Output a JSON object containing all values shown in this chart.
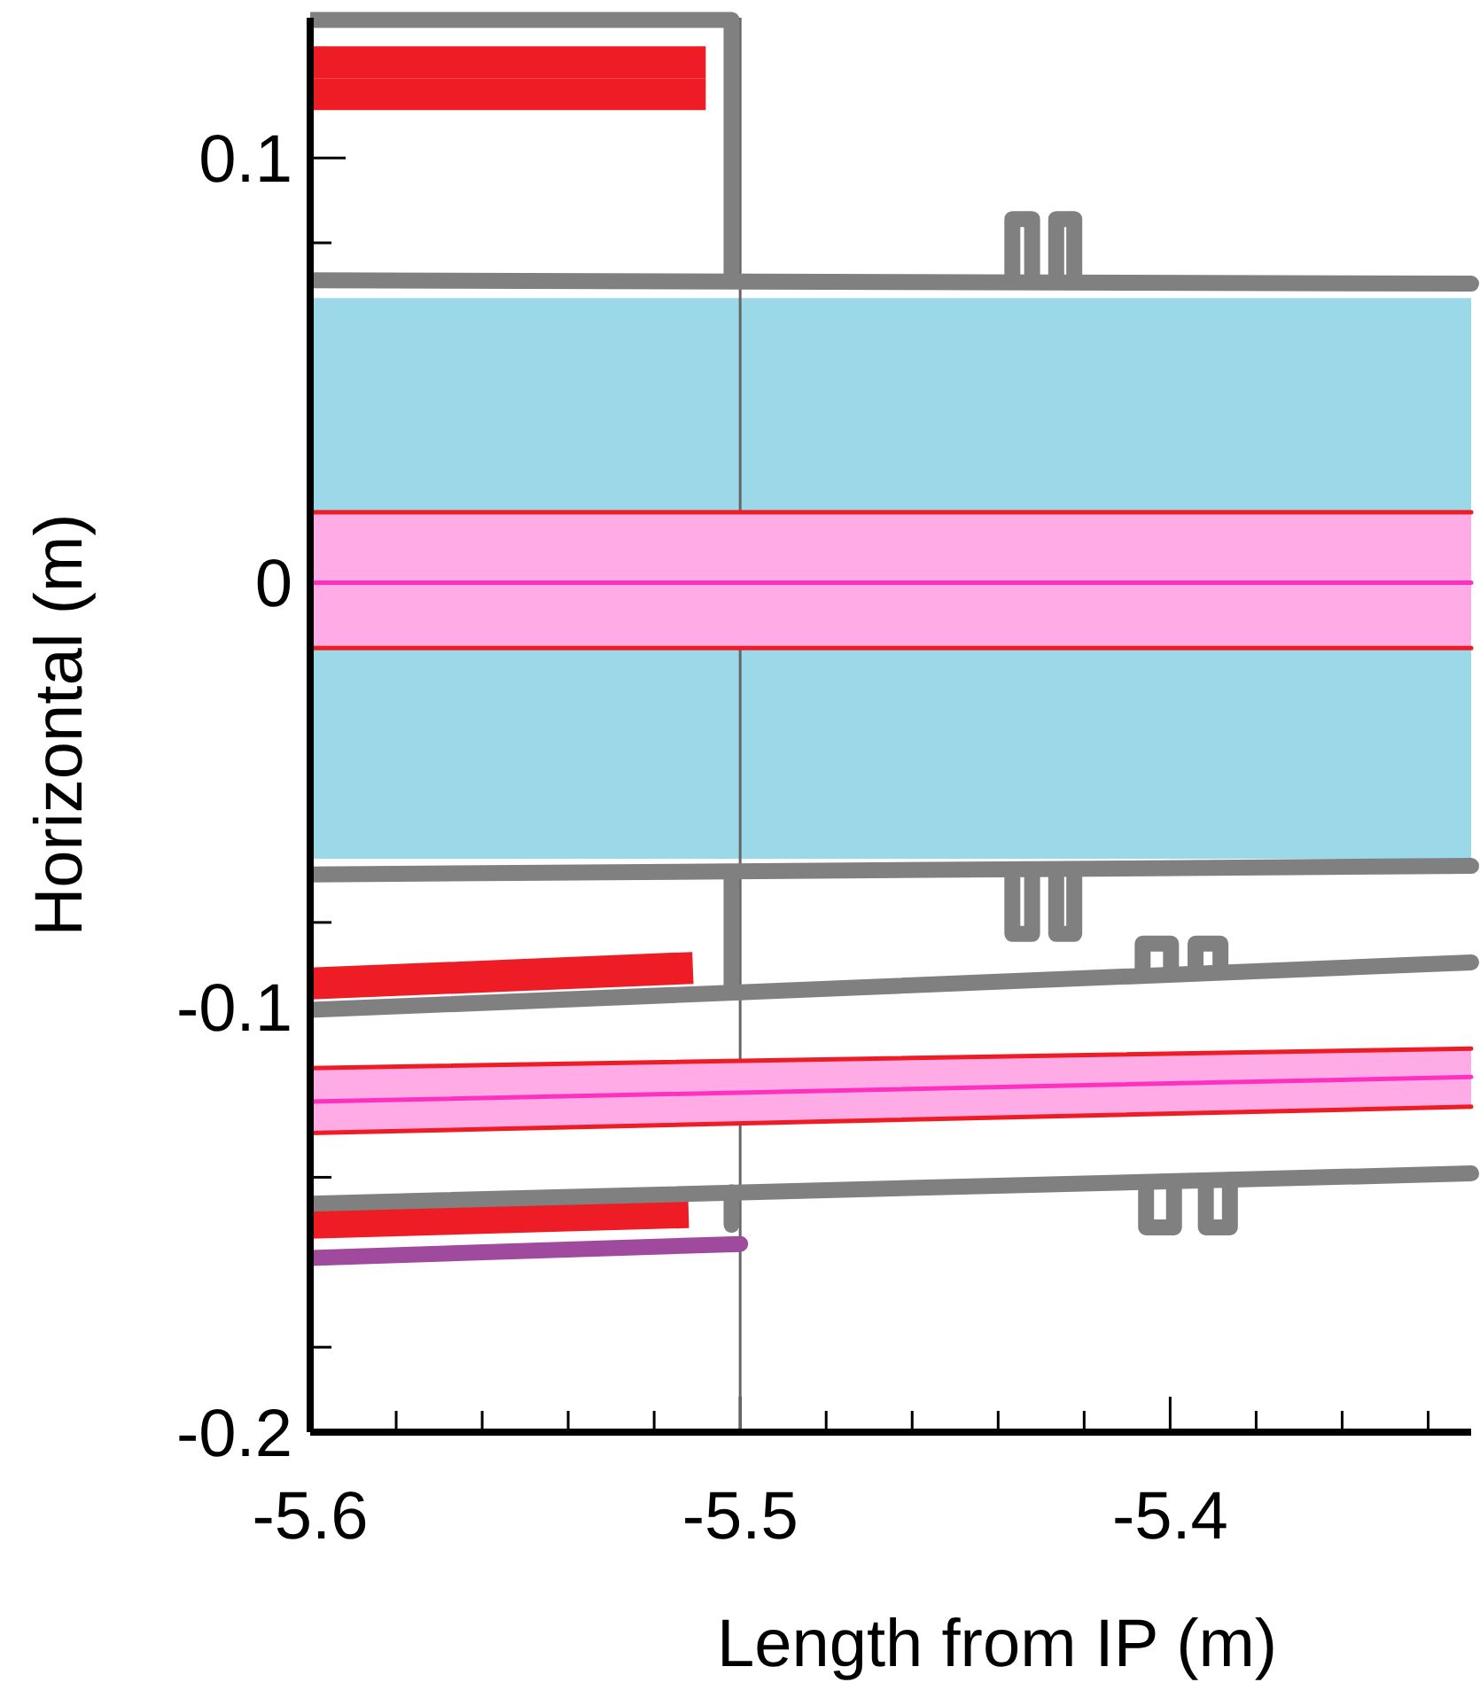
{
  "chart_data": {
    "type": "line",
    "xlabel": "Length from IP  (m)",
    "ylabel": "Horizontal (m)",
    "xlim": [
      -5.6,
      -5.33
    ],
    "ylim": [
      -0.2,
      0.133
    ],
    "xticks": [
      -5.6,
      {
        "value": -5.58,
        "label": null
      },
      {
        "value": -5.56,
        "label": null
      },
      {
        "value": -5.54,
        "label": null
      },
      {
        "value": -5.52,
        "label": null
      },
      -5.5,
      {
        "value": -5.48,
        "label": null
      },
      {
        "value": -5.46,
        "label": null
      },
      {
        "value": -5.44,
        "label": null
      },
      {
        "value": -5.42,
        "label": null
      },
      -5.4,
      {
        "value": -5.38,
        "label": null
      },
      {
        "value": -5.36,
        "label": null
      },
      {
        "value": -5.34,
        "label": null
      }
    ],
    "yticks": [
      -0.2,
      {
        "value": -0.18,
        "label": null
      },
      {
        "value": -0.16,
        "label": null
      },
      {
        "value": -0.14,
        "label": null
      },
      {
        "value": -0.12,
        "label": null
      },
      -0.1,
      {
        "value": -0.08,
        "label": null
      },
      {
        "value": -0.06,
        "label": null
      },
      {
        "value": -0.04,
        "label": null
      },
      {
        "value": -0.02,
        "label": null
      },
      0,
      {
        "value": 0.02,
        "label": null
      },
      {
        "value": 0.04,
        "label": null
      },
      {
        "value": 0.06,
        "label": null
      },
      {
        "value": 0.08,
        "label": null
      },
      0.1,
      {
        "value": 0.12,
        "label": null
      }
    ],
    "bands": [
      {
        "axis": "y",
        "from": -0.065,
        "to": 0.067,
        "color": "#9bd8e8"
      }
    ],
    "ref_lines": [
      {
        "axis": "x",
        "value": -5.5,
        "color": "#666666"
      }
    ],
    "series": [
      {
        "color": "#ff30c0",
        "x": [
          -5.6,
          -5.33
        ],
        "values": [
          0,
          0
        ],
        "lower": [
          -0.0154,
          -0.0154
        ],
        "upper": [
          0.0166,
          0.0166
        ]
      },
      {
        "color": "#ff30c0",
        "x": [
          -5.6,
          -5.33
        ],
        "values": [
          -0.1222,
          -0.1164
        ],
        "lower": [
          -0.1296,
          -0.1234
        ],
        "upper": [
          -0.1143,
          -0.1097
        ]
      },
      {
        "color": "#ee1c24",
        "x": [
          -5.6,
          -5.33
        ],
        "values": [
          0.0166,
          0.0166
        ]
      },
      {
        "color": "#ee1c24",
        "x": [
          -5.6,
          -5.33
        ],
        "values": [
          -0.0154,
          -0.0154
        ]
      },
      {
        "color": "#ee1c24",
        "x": [
          -5.6,
          -5.33
        ],
        "values": [
          -0.1143,
          -0.1097
        ]
      },
      {
        "color": "#ee1c24",
        "x": [
          -5.6,
          -5.33
        ],
        "values": [
          -0.1296,
          -0.1234
        ]
      },
      {
        "color": "#ee1c24",
        "x": [
          -5.6,
          -5.508
        ],
        "values": [
          0.1225,
          0.1225
        ]
      },
      {
        "color": "#ee1c24",
        "x": [
          -5.6,
          -5.508
        ],
        "values": [
          0.115,
          0.115
        ]
      },
      {
        "color": "#ee1c24",
        "x": [
          -5.6,
          -5.511
        ],
        "values": [
          -0.0944,
          -0.0907
        ]
      },
      {
        "color": "#ee1c24",
        "x": [
          -5.6,
          -5.512
        ],
        "values": [
          -0.1507,
          -0.1482
        ]
      },
      {
        "color": "#808080",
        "x": [
          -5.6,
          -5.502,
          -5.502
        ],
        "values": [
          0.1325,
          0.1325,
          0.0712
        ]
      },
      {
        "color": "#808080",
        "x": [
          -5.6,
          -5.33
        ],
        "values": [
          0.0712,
          0.0704
        ]
      },
      {
        "color": "#808080",
        "x": [
          -5.4367,
          -5.4367,
          -5.4321,
          -5.4321
        ],
        "values": [
          0.0712,
          0.0856,
          0.0856,
          0.0712
        ]
      },
      {
        "color": "#808080",
        "x": [
          -5.4265,
          -5.4265,
          -5.4223,
          -5.4223
        ],
        "values": [
          0.0712,
          0.0856,
          0.0856,
          0.0712
        ]
      },
      {
        "color": "#808080",
        "x": [
          -5.6,
          -5.33
        ],
        "values": [
          -0.0687,
          -0.0667
        ]
      },
      {
        "color": "#808080",
        "x": [
          -5.502,
          -5.502
        ],
        "values": [
          -0.0687,
          -0.0965
        ]
      },
      {
        "color": "#808080",
        "x": [
          -5.4367,
          -5.4367,
          -5.4321,
          -5.4321
        ],
        "values": [
          -0.0682,
          -0.0827,
          -0.0827,
          -0.0682
        ]
      },
      {
        "color": "#808080",
        "x": [
          -5.4265,
          -5.4265,
          -5.4223,
          -5.4223
        ],
        "values": [
          -0.0682,
          -0.0827,
          -0.0827,
          -0.0682
        ]
      },
      {
        "color": "#808080",
        "x": [
          -5.6,
          -5.33
        ],
        "values": [
          -0.1006,
          -0.0894
        ]
      },
      {
        "color": "#808080",
        "x": [
          -5.4064,
          -5.4064,
          -5.3998,
          -5.3998
        ],
        "values": [
          -0.0915,
          -0.085,
          -0.085,
          -0.0913
        ]
      },
      {
        "color": "#808080",
        "x": [
          -5.3941,
          -5.3941,
          -5.3883,
          -5.3883
        ],
        "values": [
          -0.091,
          -0.085,
          -0.085,
          -0.0908
        ]
      },
      {
        "color": "#808080",
        "x": [
          -5.6,
          -5.33
        ],
        "values": [
          -0.1462,
          -0.1391
        ]
      },
      {
        "color": "#808080",
        "x": [
          -5.502,
          -5.502
        ],
        "values": [
          -0.1435,
          -0.1512
        ]
      },
      {
        "color": "#808080",
        "x": [
          -5.4056,
          -5.4056,
          -5.3991,
          -5.3991
        ],
        "values": [
          -0.1413,
          -0.1518,
          -0.1518,
          -0.1411
        ]
      },
      {
        "color": "#808080",
        "x": [
          -5.3917,
          -5.3917,
          -5.3861,
          -5.3861
        ],
        "values": [
          -0.1408,
          -0.1518,
          -0.1518,
          -0.1406
        ]
      },
      {
        "color": "#a04a9e",
        "x": [
          -5.6,
          -5.5
        ],
        "values": [
          -0.159,
          -0.1557
        ]
      }
    ]
  }
}
